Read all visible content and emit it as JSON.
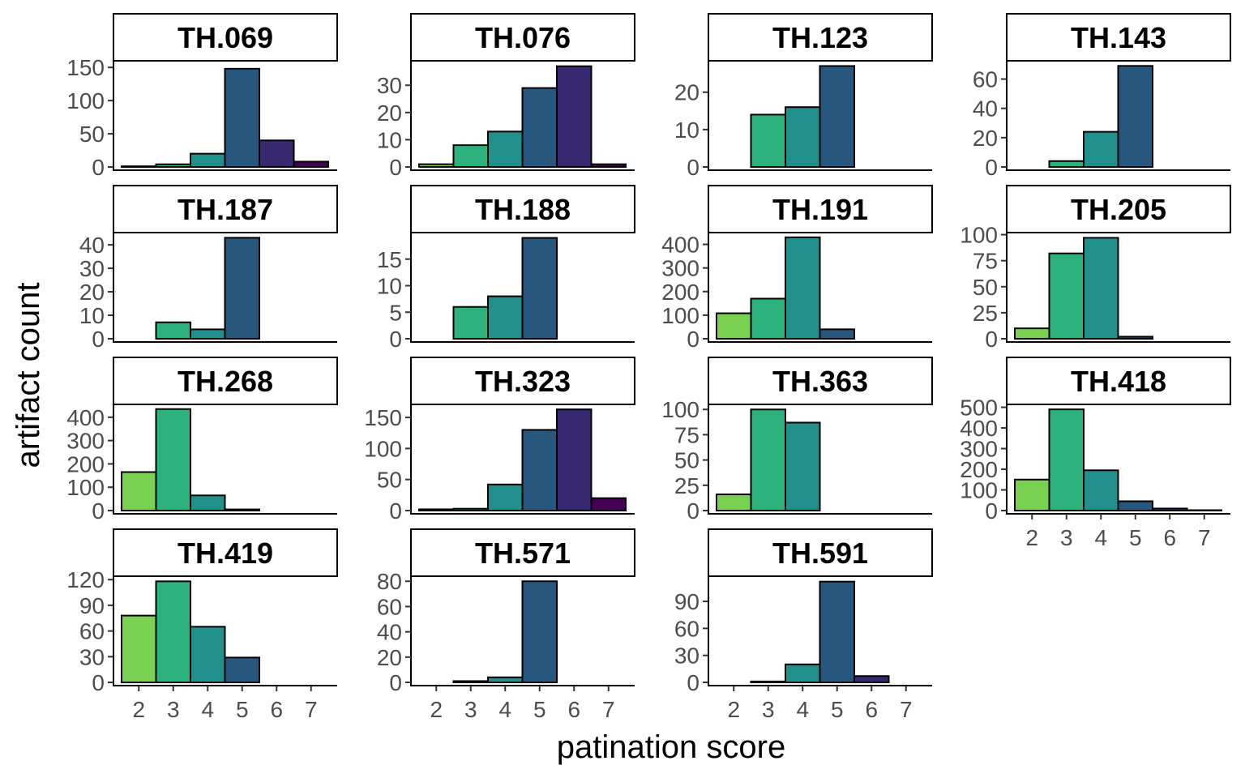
{
  "colors": {
    "2": "#7ad151",
    "3": "#2db27d",
    "4": "#21908d",
    "5": "#27577c",
    "6": "#38286f",
    "7": "#440154",
    "bar_outline": "#000000",
    "strip_fill": "#ffffff",
    "tick_text": "#4d4d4d"
  },
  "chart_data": {
    "type": "bar",
    "layout": "facet_wrap",
    "ncol": 4,
    "x_scale_shared": false,
    "y_scale": "free",
    "xlabel": "patination score",
    "ylabel": "artifact count",
    "categories": [
      "2",
      "3",
      "4",
      "5",
      "6",
      "7"
    ],
    "grid": false,
    "facets": [
      {
        "title": "TH.069",
        "values": [
          1,
          4,
          20,
          148,
          40,
          8
        ],
        "ylim": [
          0,
          160
        ],
        "yticks": [
          0,
          50,
          100,
          150
        ]
      },
      {
        "title": "TH.076",
        "values": [
          1,
          8,
          13,
          29,
          37,
          1
        ],
        "ylim": [
          0,
          39
        ],
        "yticks": [
          0,
          10,
          20,
          30
        ]
      },
      {
        "title": "TH.123",
        "values": [
          0,
          14,
          16,
          27,
          0,
          0
        ],
        "ylim": [
          0,
          28.4
        ],
        "yticks": [
          0,
          10,
          20
        ]
      },
      {
        "title": "TH.143",
        "values": [
          0,
          4,
          24,
          69,
          0,
          0
        ],
        "ylim": [
          0,
          72.5
        ],
        "yticks": [
          0,
          20,
          40,
          60
        ]
      },
      {
        "title": "TH.187",
        "values": [
          0,
          7,
          4,
          43,
          0,
          0
        ],
        "ylim": [
          0,
          45.2
        ],
        "yticks": [
          0,
          10,
          20,
          30,
          40
        ]
      },
      {
        "title": "TH.188",
        "values": [
          0,
          6,
          8,
          19,
          0,
          0
        ],
        "ylim": [
          0,
          20
        ],
        "yticks": [
          0,
          5,
          10,
          15
        ]
      },
      {
        "title": "TH.191",
        "values": [
          108,
          170,
          430,
          40,
          0,
          0
        ],
        "ylim": [
          0,
          450
        ],
        "yticks": [
          0,
          100,
          200,
          300,
          400
        ]
      },
      {
        "title": "TH.205",
        "values": [
          10,
          82,
          97,
          2,
          0,
          0
        ],
        "ylim": [
          0,
          102
        ],
        "yticks": [
          0,
          25,
          50,
          75,
          100
        ]
      },
      {
        "title": "TH.268",
        "values": [
          165,
          435,
          65,
          5,
          0,
          0
        ],
        "ylim": [
          0,
          455
        ],
        "yticks": [
          0,
          100,
          200,
          300,
          400
        ]
      },
      {
        "title": "TH.323",
        "values": [
          2,
          3,
          42,
          130,
          163,
          20
        ],
        "ylim": [
          0,
          171
        ],
        "yticks": [
          0,
          50,
          100,
          150
        ]
      },
      {
        "title": "TH.363",
        "values": [
          16,
          100,
          87,
          0,
          0,
          0
        ],
        "ylim": [
          0,
          105
        ],
        "yticks": [
          0,
          25,
          50,
          75,
          100
        ]
      },
      {
        "title": "TH.418",
        "values": [
          150,
          490,
          195,
          45,
          10,
          2
        ],
        "ylim": [
          0,
          514
        ],
        "yticks": [
          0,
          100,
          200,
          300,
          400,
          500
        ],
        "x_axis_shown": true
      },
      {
        "title": "TH.419",
        "values": [
          78,
          118,
          65,
          29,
          0,
          0
        ],
        "ylim": [
          0,
          124
        ],
        "yticks": [
          0,
          30,
          60,
          90,
          120
        ],
        "x_axis_shown": true
      },
      {
        "title": "TH.571",
        "values": [
          0,
          1,
          4,
          80,
          0,
          0
        ],
        "ylim": [
          0,
          84
        ],
        "yticks": [
          0,
          20,
          40,
          60,
          80
        ],
        "x_axis_shown": true
      },
      {
        "title": "TH.591",
        "values": [
          0,
          1,
          20,
          112,
          7,
          0
        ],
        "ylim": [
          0,
          118
        ],
        "yticks": [
          0,
          30,
          60,
          90
        ],
        "x_axis_shown": true
      }
    ]
  }
}
